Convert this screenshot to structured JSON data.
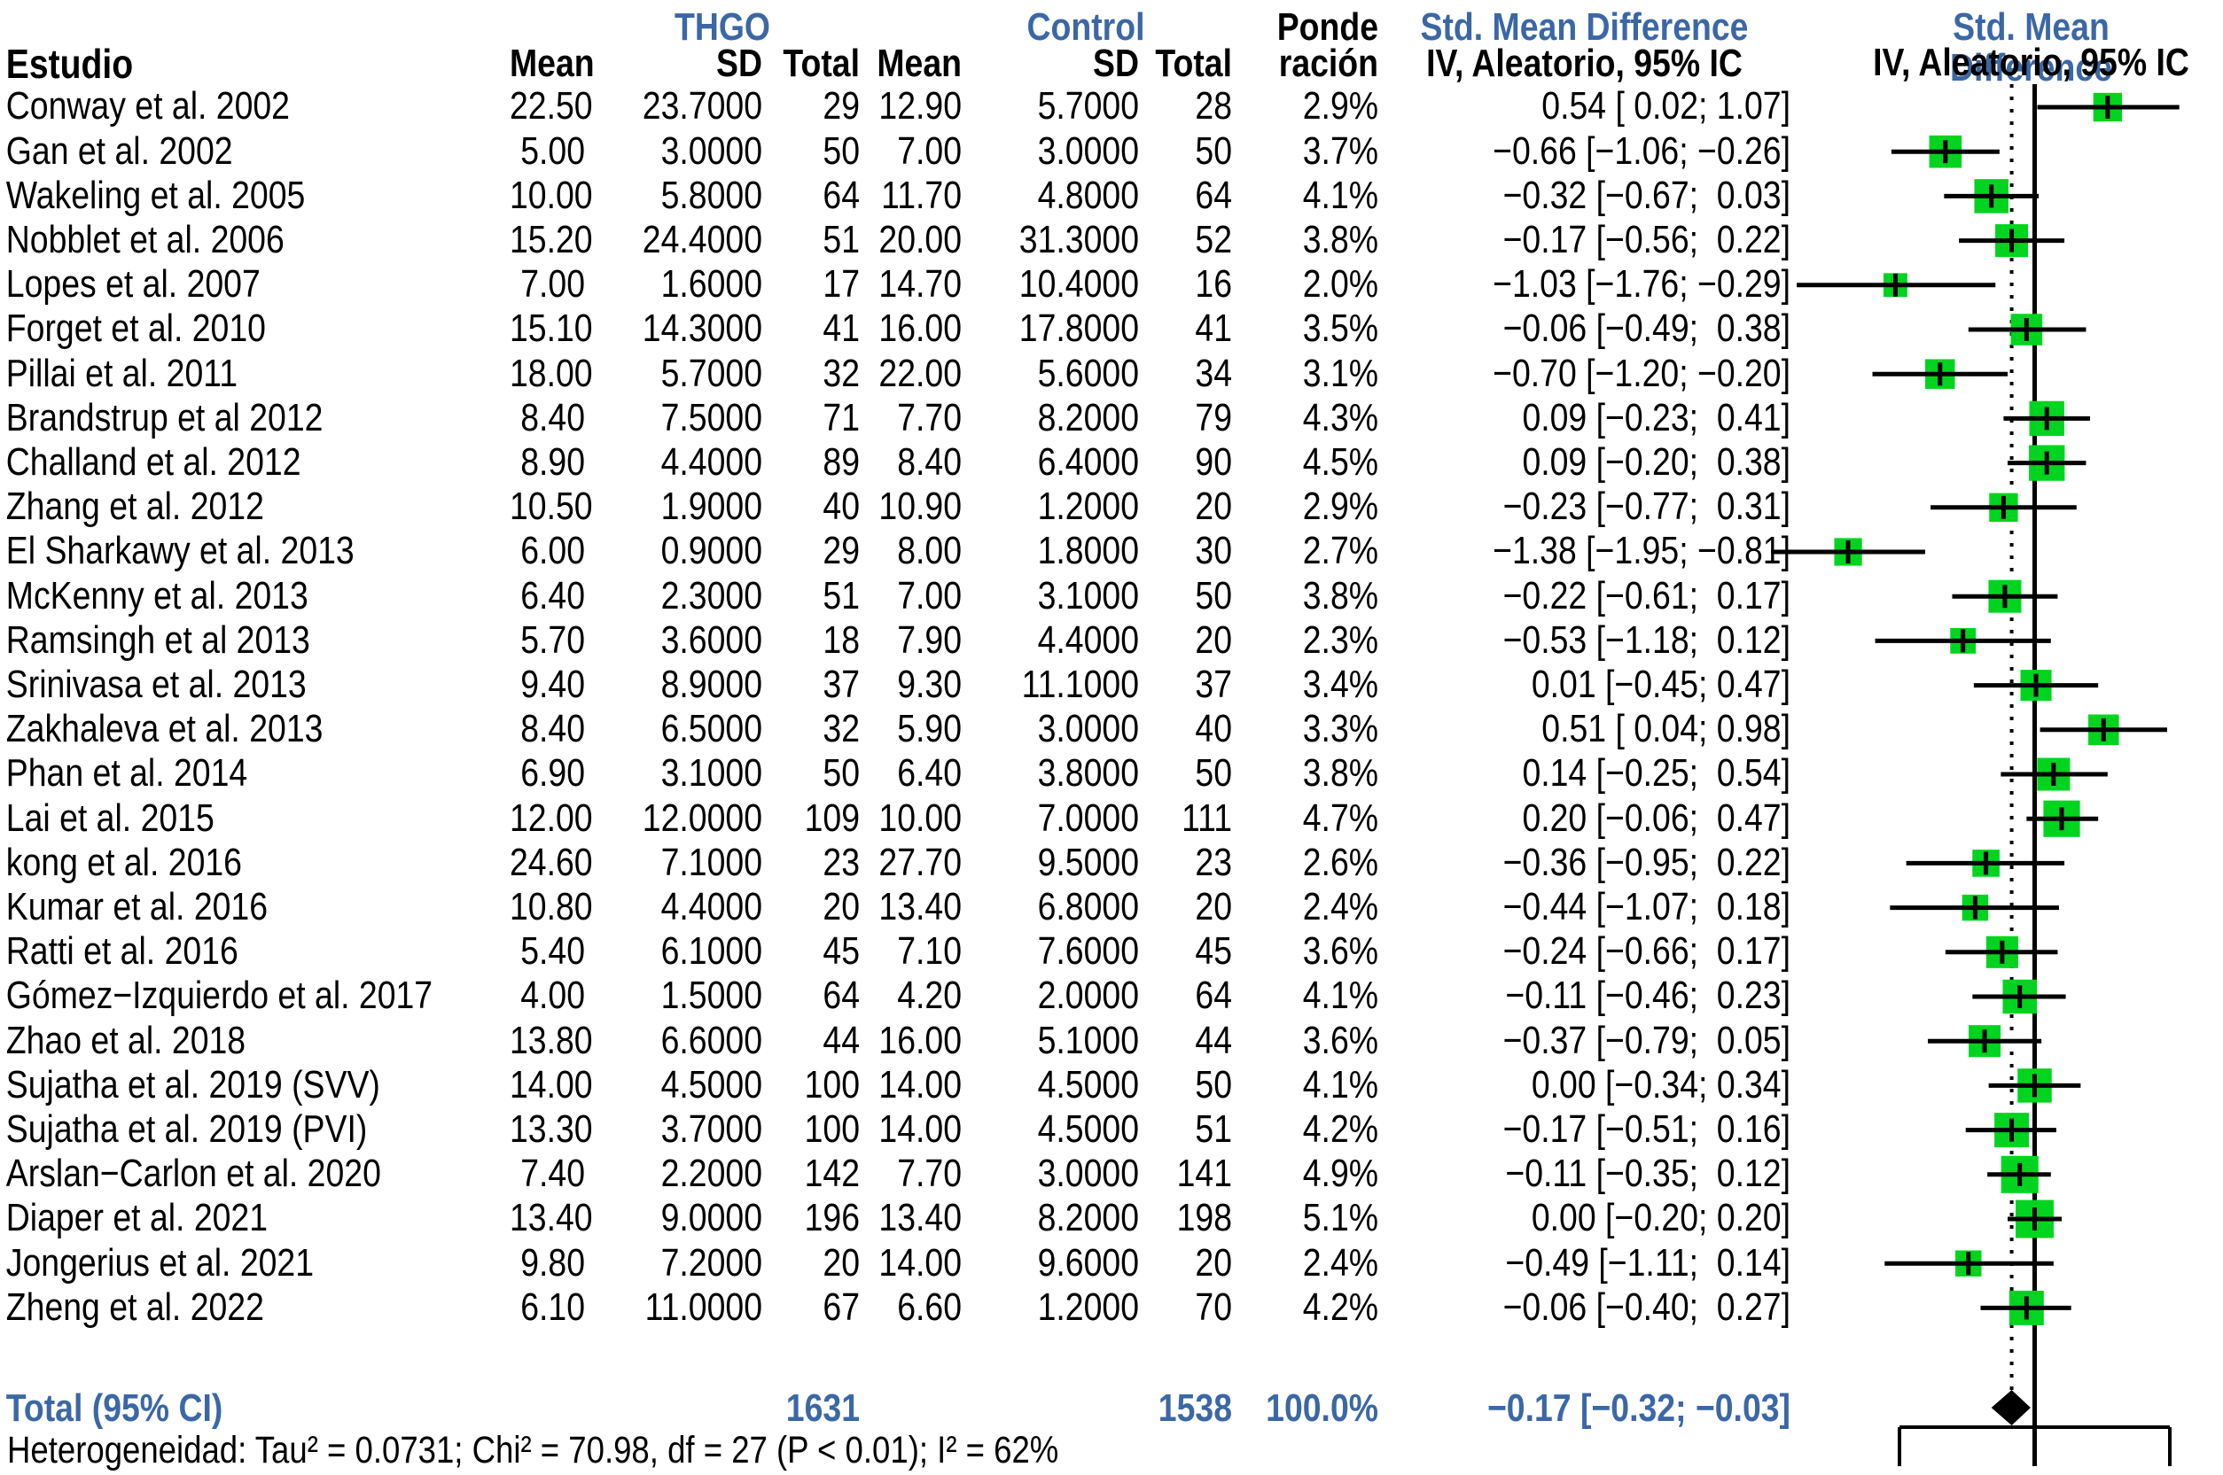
{
  "header": {
    "study": "Estudio",
    "group1": "THGO",
    "group2": "Control",
    "mean": "Mean",
    "sd": "SD",
    "total": "Total",
    "weight_line1": "Ponde",
    "weight_line2": "ración",
    "smd_title": "Std. Mean Difference",
    "smd_subtitle": "IV, Aleatorio, 95% IC",
    "plot_title": "Std. Mean Difference",
    "plot_subtitle": "IV, Aleatorio, 95% IC"
  },
  "colors": {
    "accent_blue": "#3B67A5",
    "square_green": "#00D41E",
    "line_black": "#000000"
  },
  "chart_data": {
    "type": "forest",
    "x_axis": {
      "min": -1,
      "max": 1,
      "ticks": [
        -1,
        0,
        1
      ],
      "zero_line": 0,
      "grid": false
    },
    "studies": [
      {
        "name": "Conway et al. 2002",
        "mean1": "22.50",
        "sd1": "23.7000",
        "n1": "29",
        "mean2": "12.90",
        "sd2": "5.7000",
        "n2": "28",
        "weight": "2.9%",
        "smd": "0.54 [ 0.02; 1.07]",
        "est": 0.54,
        "lo": 0.02,
        "hi": 1.07,
        "w": 2.9
      },
      {
        "name": "Gan et al. 2002",
        "mean1": "5.00",
        "sd1": "3.0000",
        "n1": "50",
        "mean2": "7.00",
        "sd2": "3.0000",
        "n2": "50",
        "weight": "3.7%",
        "smd": "−0.66 [−1.06; −0.26]",
        "est": -0.66,
        "lo": -1.06,
        "hi": -0.26,
        "w": 3.7
      },
      {
        "name": "Wakeling et al. 2005",
        "mean1": "10.00",
        "sd1": "5.8000",
        "n1": "64",
        "mean2": "11.70",
        "sd2": "4.8000",
        "n2": "64",
        "weight": "4.1%",
        "smd": "−0.32 [−0.67;  0.03]",
        "est": -0.32,
        "lo": -0.67,
        "hi": 0.03,
        "w": 4.1
      },
      {
        "name": "Nobblet et al. 2006",
        "mean1": "15.20",
        "sd1": "24.4000",
        "n1": "51",
        "mean2": "20.00",
        "sd2": "31.3000",
        "n2": "52",
        "weight": "3.8%",
        "smd": "−0.17 [−0.56;  0.22]",
        "est": -0.17,
        "lo": -0.56,
        "hi": 0.22,
        "w": 3.8
      },
      {
        "name": "Lopes et al. 2007",
        "mean1": "7.00",
        "sd1": "1.6000",
        "n1": "17",
        "mean2": "14.70",
        "sd2": "10.4000",
        "n2": "16",
        "weight": "2.0%",
        "smd": "−1.03 [−1.76; −0.29]",
        "est": -1.03,
        "lo": -1.76,
        "hi": -0.29,
        "w": 2.0
      },
      {
        "name": "Forget et al. 2010",
        "mean1": "15.10",
        "sd1": "14.3000",
        "n1": "41",
        "mean2": "16.00",
        "sd2": "17.8000",
        "n2": "41",
        "weight": "3.5%",
        "smd": "−0.06 [−0.49;  0.38]",
        "est": -0.06,
        "lo": -0.49,
        "hi": 0.38,
        "w": 3.5
      },
      {
        "name": "Pillai et al. 2011",
        "mean1": "18.00",
        "sd1": "5.7000",
        "n1": "32",
        "mean2": "22.00",
        "sd2": "5.6000",
        "n2": "34",
        "weight": "3.1%",
        "smd": "−0.70 [−1.20; −0.20]",
        "est": -0.7,
        "lo": -1.2,
        "hi": -0.2,
        "w": 3.1
      },
      {
        "name": "Brandstrup et al 2012",
        "mean1": "8.40",
        "sd1": "7.5000",
        "n1": "71",
        "mean2": "7.70",
        "sd2": "8.2000",
        "n2": "79",
        "weight": "4.3%",
        "smd": "0.09 [−0.23;  0.41]",
        "est": 0.09,
        "lo": -0.23,
        "hi": 0.41,
        "w": 4.3
      },
      {
        "name": "Challand et al. 2012",
        "mean1": "8.90",
        "sd1": "4.4000",
        "n1": "89",
        "mean2": "8.40",
        "sd2": "6.4000",
        "n2": "90",
        "weight": "4.5%",
        "smd": "0.09 [−0.20;  0.38]",
        "est": 0.09,
        "lo": -0.2,
        "hi": 0.38,
        "w": 4.5
      },
      {
        "name": "Zhang et al. 2012",
        "mean1": "10.50",
        "sd1": "1.9000",
        "n1": "40",
        "mean2": "10.90",
        "sd2": "1.2000",
        "n2": "20",
        "weight": "2.9%",
        "smd": "−0.23 [−0.77;  0.31]",
        "est": -0.23,
        "lo": -0.77,
        "hi": 0.31,
        "w": 2.9
      },
      {
        "name": "El Sharkawy et al. 2013",
        "mean1": "6.00",
        "sd1": "0.9000",
        "n1": "29",
        "mean2": "8.00",
        "sd2": "1.8000",
        "n2": "30",
        "weight": "2.7%",
        "smd": "−1.38 [−1.95; −0.81]",
        "est": -1.38,
        "lo": -1.95,
        "hi": -0.81,
        "w": 2.7
      },
      {
        "name": "McKenny et al. 2013",
        "mean1": "6.40",
        "sd1": "2.3000",
        "n1": "51",
        "mean2": "7.00",
        "sd2": "3.1000",
        "n2": "50",
        "weight": "3.8%",
        "smd": "−0.22 [−0.61;  0.17]",
        "est": -0.22,
        "lo": -0.61,
        "hi": 0.17,
        "w": 3.8
      },
      {
        "name": "Ramsingh et al 2013",
        "mean1": "5.70",
        "sd1": "3.6000",
        "n1": "18",
        "mean2": "7.90",
        "sd2": "4.4000",
        "n2": "20",
        "weight": "2.3%",
        "smd": "−0.53 [−1.18;  0.12]",
        "est": -0.53,
        "lo": -1.18,
        "hi": 0.12,
        "w": 2.3
      },
      {
        "name": "Srinivasa et al. 2013",
        "mean1": "9.40",
        "sd1": "8.9000",
        "n1": "37",
        "mean2": "9.30",
        "sd2": "11.1000",
        "n2": "37",
        "weight": "3.4%",
        "smd": "0.01 [−0.45; 0.47]",
        "est": 0.01,
        "lo": -0.45,
        "hi": 0.47,
        "w": 3.4
      },
      {
        "name": "Zakhaleva et al. 2013",
        "mean1": "8.40",
        "sd1": "6.5000",
        "n1": "32",
        "mean2": "5.90",
        "sd2": "3.0000",
        "n2": "40",
        "weight": "3.3%",
        "smd": "0.51 [ 0.04; 0.98]",
        "est": 0.51,
        "lo": 0.04,
        "hi": 0.98,
        "w": 3.3
      },
      {
        "name": "Phan et al. 2014",
        "mean1": "6.90",
        "sd1": "3.1000",
        "n1": "50",
        "mean2": "6.40",
        "sd2": "3.8000",
        "n2": "50",
        "weight": "3.8%",
        "smd": "0.14 [−0.25;  0.54]",
        "est": 0.14,
        "lo": -0.25,
        "hi": 0.54,
        "w": 3.8
      },
      {
        "name": "Lai et al. 2015",
        "mean1": "12.00",
        "sd1": "12.0000",
        "n1": "109",
        "mean2": "10.00",
        "sd2": "7.0000",
        "n2": "111",
        "weight": "4.7%",
        "smd": "0.20 [−0.06;  0.47]",
        "est": 0.2,
        "lo": -0.06,
        "hi": 0.47,
        "w": 4.7
      },
      {
        "name": "kong et al. 2016",
        "mean1": "24.60",
        "sd1": "7.1000",
        "n1": "23",
        "mean2": "27.70",
        "sd2": "9.5000",
        "n2": "23",
        "weight": "2.6%",
        "smd": "−0.36 [−0.95;  0.22]",
        "est": -0.36,
        "lo": -0.95,
        "hi": 0.22,
        "w": 2.6
      },
      {
        "name": "Kumar et al. 2016",
        "mean1": "10.80",
        "sd1": "4.4000",
        "n1": "20",
        "mean2": "13.40",
        "sd2": "6.8000",
        "n2": "20",
        "weight": "2.4%",
        "smd": "−0.44 [−1.07;  0.18]",
        "est": -0.44,
        "lo": -1.07,
        "hi": 0.18,
        "w": 2.4
      },
      {
        "name": "Ratti et al. 2016",
        "mean1": "5.40",
        "sd1": "6.1000",
        "n1": "45",
        "mean2": "7.10",
        "sd2": "7.6000",
        "n2": "45",
        "weight": "3.6%",
        "smd": "−0.24 [−0.66;  0.17]",
        "est": -0.24,
        "lo": -0.66,
        "hi": 0.17,
        "w": 3.6
      },
      {
        "name": "Gómez−Izquierdo et al. 2017",
        "mean1": "4.00",
        "sd1": "1.5000",
        "n1": "64",
        "mean2": "4.20",
        "sd2": "2.0000",
        "n2": "64",
        "weight": "4.1%",
        "smd": "−0.11 [−0.46;  0.23]",
        "est": -0.11,
        "lo": -0.46,
        "hi": 0.23,
        "w": 4.1
      },
      {
        "name": "Zhao et al. 2018",
        "mean1": "13.80",
        "sd1": "6.6000",
        "n1": "44",
        "mean2": "16.00",
        "sd2": "5.1000",
        "n2": "44",
        "weight": "3.6%",
        "smd": "−0.37 [−0.79;  0.05]",
        "est": -0.37,
        "lo": -0.79,
        "hi": 0.05,
        "w": 3.6
      },
      {
        "name": "Sujatha et al. 2019 (SVV)",
        "mean1": "14.00",
        "sd1": "4.5000",
        "n1": "100",
        "mean2": "14.00",
        "sd2": "4.5000",
        "n2": "50",
        "weight": "4.1%",
        "smd": "0.00 [−0.34; 0.34]",
        "est": 0.0,
        "lo": -0.34,
        "hi": 0.34,
        "w": 4.1
      },
      {
        "name": "Sujatha et al. 2019 (PVI)",
        "mean1": "13.30",
        "sd1": "3.7000",
        "n1": "100",
        "mean2": "14.00",
        "sd2": "4.5000",
        "n2": "51",
        "weight": "4.2%",
        "smd": "−0.17 [−0.51;  0.16]",
        "est": -0.17,
        "lo": -0.51,
        "hi": 0.16,
        "w": 4.2
      },
      {
        "name": "Arslan−Carlon et al. 2020",
        "mean1": "7.40",
        "sd1": "2.2000",
        "n1": "142",
        "mean2": "7.70",
        "sd2": "3.0000",
        "n2": "141",
        "weight": "4.9%",
        "smd": "−0.11 [−0.35;  0.12]",
        "est": -0.11,
        "lo": -0.35,
        "hi": 0.12,
        "w": 4.9
      },
      {
        "name": "Diaper et al. 2021",
        "mean1": "13.40",
        "sd1": "9.0000",
        "n1": "196",
        "mean2": "13.40",
        "sd2": "8.2000",
        "n2": "198",
        "weight": "5.1%",
        "smd": "0.00 [−0.20; 0.20]",
        "est": 0.0,
        "lo": -0.2,
        "hi": 0.2,
        "w": 5.1
      },
      {
        "name": "Jongerius et al. 2021",
        "mean1": "9.80",
        "sd1": "7.2000",
        "n1": "20",
        "mean2": "14.00",
        "sd2": "9.6000",
        "n2": "20",
        "weight": "2.4%",
        "smd": "−0.49 [−1.11;  0.14]",
        "est": -0.49,
        "lo": -1.11,
        "hi": 0.14,
        "w": 2.4
      },
      {
        "name": "Zheng et al. 2022",
        "mean1": "6.10",
        "sd1": "11.0000",
        "n1": "67",
        "mean2": "6.60",
        "sd2": "1.2000",
        "n2": "70",
        "weight": "4.2%",
        "smd": "−0.06 [−0.40;  0.27]",
        "est": -0.06,
        "lo": -0.4,
        "hi": 0.27,
        "w": 4.2
      }
    ],
    "total": {
      "label": "Total (95% CI)",
      "n1": "1631",
      "n2": "1538",
      "weight": "100.0%",
      "smd": "−0.17 [−0.32; −0.03]",
      "est": -0.17,
      "lo": -0.32,
      "hi": -0.03
    },
    "heterogeneity": "Heterogeneidad: Tau² = 0.0731; Chi² = 70.98, df = 27 (P < 0.01); I² = 62%"
  }
}
